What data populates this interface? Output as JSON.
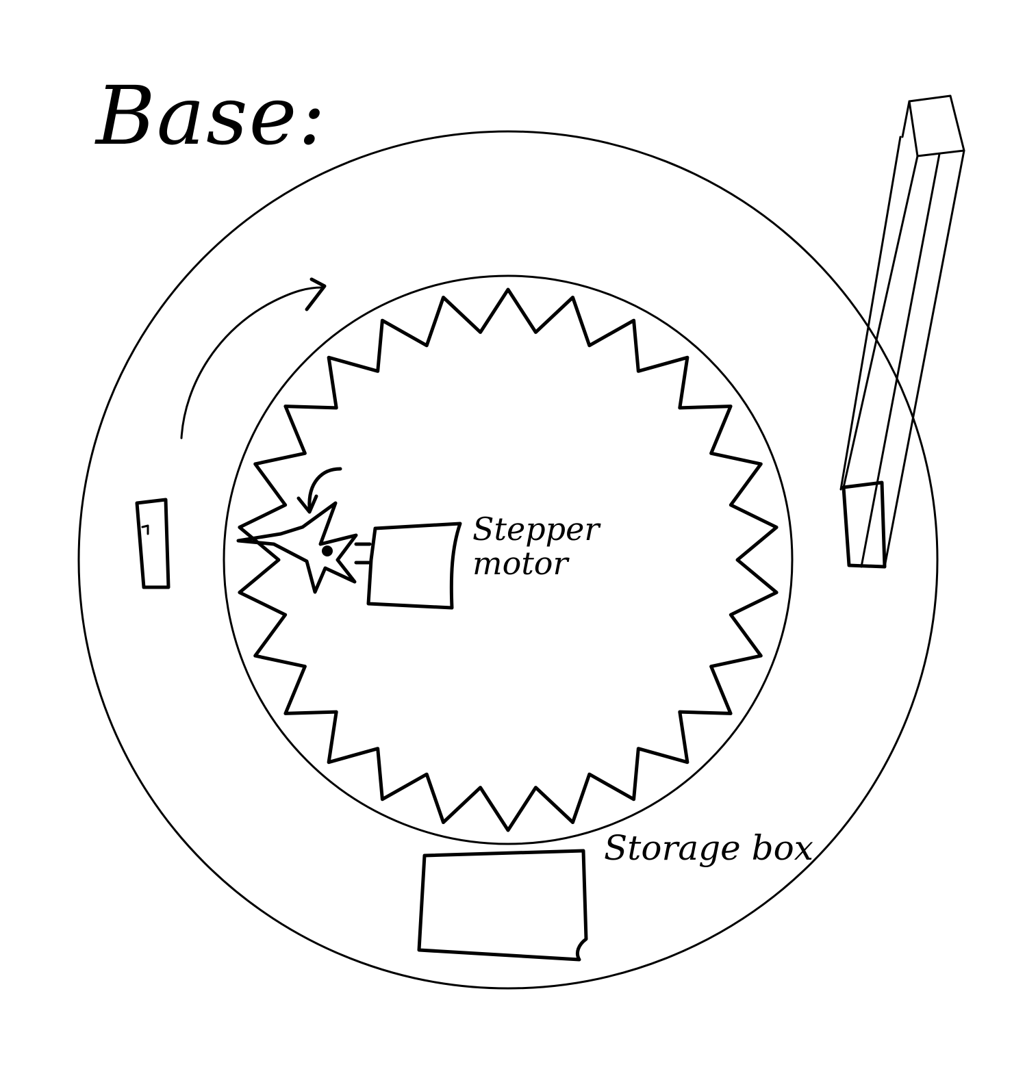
{
  "title": "Base:",
  "labels": {
    "stepper_line1": "Stepper",
    "stepper_line2": "motor",
    "storage": "Storage box"
  }
}
